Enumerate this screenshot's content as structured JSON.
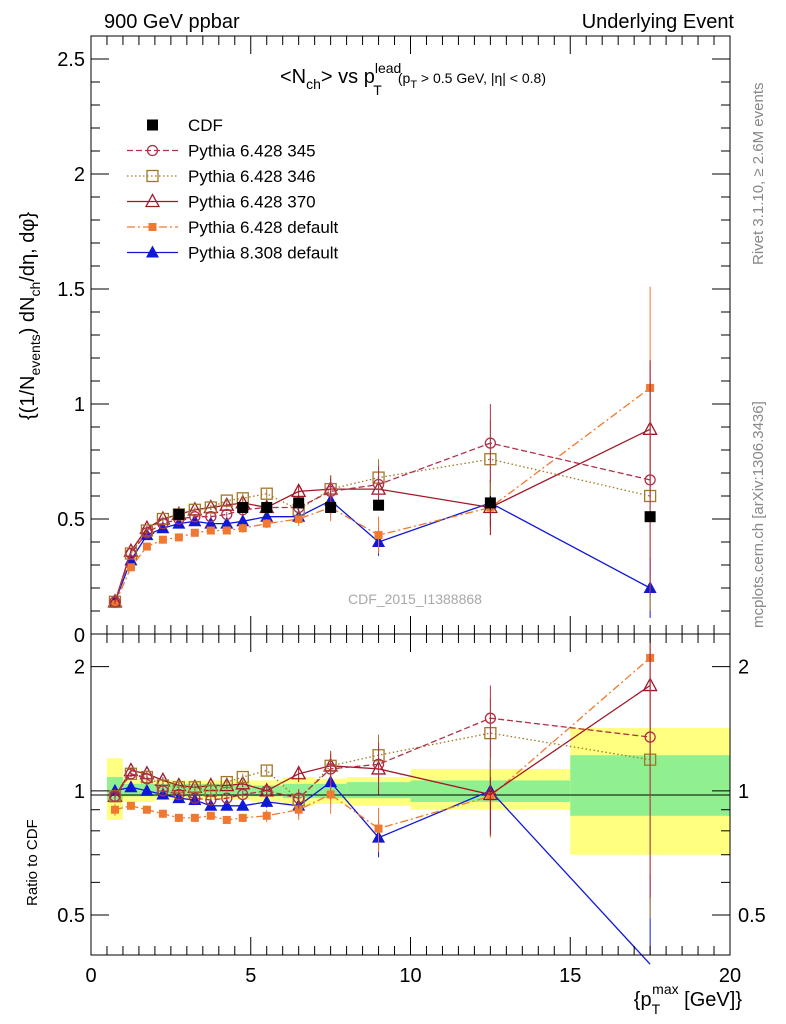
{
  "header": {
    "left_title": "900 GeV ppbar",
    "right_title": "Underlying Event"
  },
  "side_labels": {
    "rivet": "Rivet 3.1.10, ≥ 2.6M events",
    "mcplots": "mcplots.cern.ch [arXiv:1306.3436]"
  },
  "chart_data": [
    {
      "type": "scatter",
      "title_main": "<N",
      "title_sub_ch": "ch",
      "title_mid": "> vs p",
      "title_sup_lead": "lead",
      "title_sub_T": "T",
      "title_cut": "(p",
      "title_cut_T": "T",
      "title_cut_rest": " > 0.5 GeV, |η| < 0.8)",
      "ylabel": "{(1/N_events) dN_ch/dη, dφ}",
      "ylabel_parts": [
        "{(1/N",
        "events",
        ") dN",
        "ch",
        "/dη, dφ}"
      ],
      "watermark": "CDF_2015_I1388868",
      "xlim": [
        0,
        20
      ],
      "ylim": [
        0,
        2.6
      ],
      "y_ticks": [
        "0.5",
        "1",
        "1.5",
        "2",
        "2.5"
      ],
      "y_zero_label": "0",
      "legend_position": "top-left",
      "x": [
        0.75,
        1.25,
        1.75,
        2.25,
        2.75,
        3.25,
        3.75,
        4.25,
        4.75,
        5.5,
        6.5,
        7.5,
        9.0,
        12.5,
        17.5
      ],
      "series": [
        {
          "name": "CDF",
          "color": "#000000",
          "marker": "filled-square",
          "line": "none",
          "values": [
            null,
            null,
            null,
            null,
            0.52,
            null,
            null,
            null,
            0.55,
            0.55,
            0.57,
            0.55,
            0.56,
            0.57,
            0.51
          ],
          "errors": [
            0,
            0,
            0,
            0,
            0.01,
            0,
            0,
            0,
            0.01,
            0.01,
            0.01,
            0.02,
            0.02,
            0.03,
            0.02
          ]
        },
        {
          "name": "Pythia 6.428 345",
          "color": "#b03048",
          "marker": "open-circle",
          "line": "dashed",
          "values": [
            0.14,
            0.35,
            0.44,
            0.48,
            0.5,
            0.51,
            0.51,
            0.52,
            0.54,
            0.55,
            0.55,
            0.62,
            0.65,
            0.83,
            0.67
          ],
          "errors": [
            0.01,
            0.01,
            0.01,
            0.01,
            0.01,
            0.01,
            0.01,
            0.01,
            0.02,
            0.02,
            0.03,
            0.06,
            0.08,
            0.17,
            0.5
          ]
        },
        {
          "name": "Pythia 6.428 346",
          "color": "#a07828",
          "marker": "open-square",
          "line": "dotted",
          "values": [
            0.14,
            0.35,
            0.45,
            0.5,
            0.52,
            0.54,
            0.55,
            0.58,
            0.59,
            0.61,
            0.54,
            0.63,
            0.68,
            0.76,
            0.6
          ],
          "errors": [
            0.01,
            0.01,
            0.01,
            0.01,
            0.01,
            0.01,
            0.01,
            0.01,
            0.02,
            0.02,
            0.03,
            0.06,
            0.08,
            0.17,
            0.5
          ]
        },
        {
          "name": "Pythia 6.428 370",
          "color": "#a01828",
          "marker": "open-triangle",
          "line": "solid",
          "values": [
            0.14,
            0.36,
            0.46,
            0.5,
            0.52,
            0.54,
            0.55,
            0.56,
            0.57,
            0.55,
            0.62,
            0.63,
            0.63,
            0.55,
            0.89
          ],
          "errors": [
            0.01,
            0.01,
            0.01,
            0.01,
            0.01,
            0.01,
            0.01,
            0.01,
            0.02,
            0.02,
            0.03,
            0.06,
            0.08,
            0.12,
            0.3
          ]
        },
        {
          "name": "Pythia 6.428 default",
          "color": "#f07830",
          "marker": "filled-small-square",
          "line": "dashdot",
          "values": [
            0.13,
            0.29,
            0.38,
            0.41,
            0.42,
            0.44,
            0.45,
            0.45,
            0.46,
            0.48,
            0.5,
            0.55,
            0.43,
            0.55,
            1.07
          ],
          "errors": [
            0.01,
            0.01,
            0.01,
            0.01,
            0.01,
            0.01,
            0.01,
            0.01,
            0.02,
            0.02,
            0.03,
            0.06,
            0.08,
            0.12,
            0.44
          ]
        },
        {
          "name": "Pythia 8.308 default",
          "color": "#1018d8",
          "marker": "filled-triangle",
          "line": "solid",
          "values": [
            0.14,
            0.32,
            0.43,
            0.46,
            0.48,
            0.49,
            0.48,
            0.48,
            0.49,
            0.51,
            0.51,
            0.58,
            0.4,
            0.57,
            0.2
          ],
          "errors": [
            0.01,
            0.01,
            0.01,
            0.01,
            0.01,
            0.01,
            0.01,
            0.01,
            0.02,
            0.02,
            0.03,
            0.06,
            0.06,
            0.1,
            0.13
          ]
        }
      ]
    },
    {
      "type": "scatter",
      "ylabel": "Ratio to CDF",
      "xlabel_parts": [
        "{p",
        "T",
        "max",
        " [GeV]}"
      ],
      "xlim": [
        0,
        20
      ],
      "ylim": [
        0.4,
        2.4
      ],
      "y_scale": "log",
      "x_ticks": [
        "0",
        "5",
        "10",
        "15",
        "20"
      ],
      "y_ticks": [
        "0.5",
        "1",
        "2"
      ],
      "x": [
        0.75,
        1.25,
        1.75,
        2.25,
        2.75,
        3.25,
        3.75,
        4.25,
        4.75,
        5.5,
        6.5,
        7.5,
        9.0,
        12.5,
        17.5
      ],
      "bands": [
        {
          "x0": 0.5,
          "x1": 1.0,
          "inner": [
            0.94,
            1.08
          ],
          "outer": [
            0.85,
            1.2
          ]
        },
        {
          "x0": 1.0,
          "x1": 1.5,
          "inner": [
            0.97,
            1.04
          ],
          "outer": [
            0.94,
            1.07
          ]
        },
        {
          "x0": 1.5,
          "x1": 2.0,
          "inner": [
            0.97,
            1.04
          ],
          "outer": [
            0.94,
            1.06
          ]
        },
        {
          "x0": 2.0,
          "x1": 5.0,
          "inner": [
            0.97,
            1.04
          ],
          "outer": [
            0.95,
            1.06
          ]
        },
        {
          "x0": 5.0,
          "x1": 6.0,
          "inner": [
            0.97,
            1.03
          ],
          "outer": [
            0.94,
            1.06
          ]
        },
        {
          "x0": 6.0,
          "x1": 7.0,
          "inner": [
            0.96,
            1.04
          ],
          "outer": [
            0.92,
            1.08
          ]
        },
        {
          "x0": 7.0,
          "x1": 8.0,
          "inner": [
            0.96,
            1.04
          ],
          "outer": [
            0.93,
            1.07
          ]
        },
        {
          "x0": 8.0,
          "x1": 10.0,
          "inner": [
            0.96,
            1.05
          ],
          "outer": [
            0.92,
            1.08
          ]
        },
        {
          "x0": 10.0,
          "x1": 15.0,
          "inner": [
            0.94,
            1.06
          ],
          "outer": [
            0.9,
            1.13
          ]
        },
        {
          "x0": 15.0,
          "x1": 20.0,
          "inner": [
            0.87,
            1.22
          ],
          "outer": [
            0.7,
            1.42
          ]
        }
      ],
      "series": [
        {
          "name": "Pythia 6.428 345",
          "color": "#b03048",
          "marker": "open-circle",
          "line": "dashed",
          "values": [
            0.97,
            1.1,
            1.07,
            1.0,
            0.98,
            0.96,
            0.95,
            0.96,
            0.98,
            1.0,
            0.96,
            1.13,
            1.16,
            1.5,
            1.35
          ],
          "errors": [
            0.03,
            0.02,
            0.02,
            0.02,
            0.02,
            0.02,
            0.02,
            0.02,
            0.02,
            0.03,
            0.05,
            0.1,
            0.15,
            0.3,
            0.8
          ]
        },
        {
          "name": "Pythia 6.428 346",
          "color": "#a07828",
          "marker": "open-square",
          "line": "dotted",
          "values": [
            0.97,
            1.1,
            1.08,
            1.03,
            1.02,
            1.02,
            1.0,
            1.05,
            1.08,
            1.12,
            0.95,
            1.15,
            1.22,
            1.38,
            1.19
          ],
          "errors": [
            0.03,
            0.02,
            0.02,
            0.02,
            0.02,
            0.02,
            0.02,
            0.02,
            0.02,
            0.03,
            0.05,
            0.1,
            0.15,
            0.3,
            0.7
          ]
        },
        {
          "name": "Pythia 6.428 370",
          "color": "#a01828",
          "marker": "open-triangle",
          "line": "solid",
          "values": [
            0.97,
            1.12,
            1.1,
            1.06,
            1.03,
            1.02,
            1.03,
            1.03,
            1.04,
            1.0,
            1.1,
            1.15,
            1.13,
            0.98,
            1.8
          ],
          "errors": [
            0.03,
            0.02,
            0.02,
            0.02,
            0.02,
            0.02,
            0.02,
            0.02,
            0.02,
            0.03,
            0.05,
            0.1,
            0.15,
            0.2,
            0.6
          ]
        },
        {
          "name": "Pythia 6.428 default",
          "color": "#f07830",
          "marker": "filled-small-square",
          "line": "dashdot",
          "values": [
            0.9,
            0.92,
            0.9,
            0.88,
            0.86,
            0.86,
            0.87,
            0.85,
            0.86,
            0.87,
            0.9,
            0.98,
            0.81,
            0.97,
            2.1
          ],
          "errors": [
            0.03,
            0.02,
            0.02,
            0.02,
            0.02,
            0.02,
            0.02,
            0.02,
            0.02,
            0.03,
            0.05,
            0.1,
            0.1,
            0.2,
            0.7
          ]
        },
        {
          "name": "Pythia 8.308 default",
          "color": "#1018d8",
          "marker": "filled-triangle",
          "line": "solid",
          "values": [
            1.0,
            1.02,
            1.0,
            0.98,
            0.96,
            0.95,
            0.92,
            0.92,
            0.92,
            0.94,
            0.92,
            1.05,
            0.77,
            1.0,
            0.38
          ],
          "errors": [
            0.03,
            0.02,
            0.02,
            0.02,
            0.02,
            0.02,
            0.02,
            0.02,
            0.02,
            0.03,
            0.05,
            0.1,
            0.08,
            0.2,
            0.25
          ]
        }
      ]
    }
  ]
}
